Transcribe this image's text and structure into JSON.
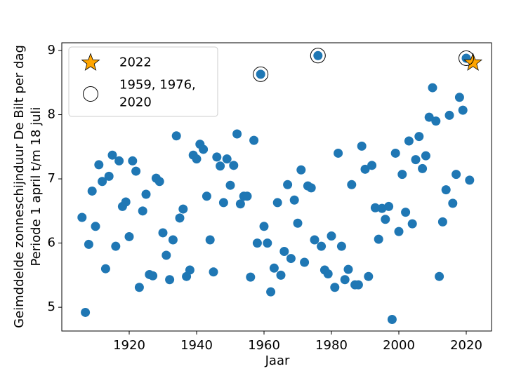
{
  "chart_data": {
    "type": "scatter",
    "xlabel": "Jaar",
    "ylabel": [
      "Geimddelde zonneschijnduur De Bilt per dag",
      "Periode 1 april t/m 18 juli"
    ],
    "xlim": [
      1900,
      2027.5
    ],
    "ylim": [
      4.63,
      9.12
    ],
    "xticks": [
      1920,
      1940,
      1960,
      1980,
      2000,
      2020
    ],
    "yticks": [
      5,
      6,
      7,
      8,
      9
    ],
    "legend": "upper left",
    "series": [
      {
        "marker": "dot",
        "color": "#1f77b4",
        "x": [
          1906,
          1907,
          1908,
          1909,
          1910,
          1911,
          1912,
          1913,
          1914,
          1915,
          1916,
          1917,
          1918,
          1919,
          1920,
          1921,
          1922,
          1923,
          1924,
          1925,
          1926,
          1927,
          1928,
          1929,
          1930,
          1931,
          1932,
          1933,
          1934,
          1935,
          1936,
          1937,
          1938,
          1939,
          1940,
          1941,
          1942,
          1943,
          1944,
          1945,
          1946,
          1947,
          1948,
          1949,
          1950,
          1951,
          1952,
          1953,
          1954,
          1955,
          1956,
          1957,
          1958,
          1959,
          1960,
          1961,
          1962,
          1963,
          1964,
          1965,
          1966,
          1967,
          1968,
          1969,
          1970,
          1971,
          1972,
          1973,
          1974,
          1975,
          1976,
          1977,
          1978,
          1979,
          1980,
          1981,
          1982,
          1983,
          1984,
          1985,
          1986,
          1987,
          1988,
          1989,
          1990,
          1991,
          1992,
          1993,
          1994,
          1995,
          1996,
          1997,
          1998,
          1999,
          2000,
          2001,
          2002,
          2003,
          2004,
          2005,
          2006,
          2007,
          2008,
          2009,
          2010,
          2011,
          2012,
          2013,
          2014,
          2015,
          2016,
          2017,
          2018,
          2019,
          2020,
          2021
        ],
        "values": [
          6.4,
          4.92,
          5.98,
          6.81,
          6.26,
          7.22,
          6.96,
          5.6,
          7.04,
          7.37,
          5.95,
          7.28,
          6.57,
          6.64,
          6.1,
          7.28,
          7.12,
          5.31,
          6.5,
          6.76,
          5.51,
          5.49,
          7.01,
          6.96,
          6.16,
          5.81,
          5.43,
          6.05,
          7.67,
          6.39,
          6.53,
          5.48,
          5.58,
          7.37,
          7.31,
          7.54,
          7.46,
          6.73,
          6.05,
          5.55,
          7.34,
          7.2,
          6.63,
          7.31,
          6.9,
          7.21,
          7.7,
          6.61,
          6.73,
          6.73,
          5.47,
          7.6,
          6.0,
          8.63,
          6.26,
          6.0,
          5.24,
          5.61,
          6.63,
          5.5,
          5.87,
          6.91,
          5.76,
          6.67,
          6.31,
          7.14,
          5.7,
          6.89,
          6.86,
          6.05,
          8.92,
          5.95,
          5.58,
          5.52,
          6.11,
          5.31,
          7.4,
          5.95,
          5.43,
          5.59,
          6.91,
          5.35,
          5.35,
          7.51,
          7.15,
          5.48,
          7.21,
          6.55,
          6.06,
          6.54,
          6.37,
          6.57,
          4.81,
          7.4,
          6.18,
          7.07,
          6.48,
          7.59,
          6.3,
          7.3,
          7.66,
          7.16,
          7.36,
          7.96,
          8.42,
          7.9,
          5.48,
          6.33,
          6.83,
          7.99,
          6.62,
          7.07,
          8.27,
          8.07,
          8.88,
          6.98
        ]
      },
      {
        "name": [
          "2022"
        ],
        "marker": "star",
        "color": "#ffa500",
        "x": [
          2022
        ],
        "values": [
          8.81
        ]
      },
      {
        "name": [
          "1959, 1976,",
          "2020"
        ],
        "marker": "open-circle",
        "color": "#000000",
        "x": [
          1959,
          1976,
          2020
        ],
        "values": [
          8.63,
          8.92,
          8.88
        ]
      }
    ]
  }
}
